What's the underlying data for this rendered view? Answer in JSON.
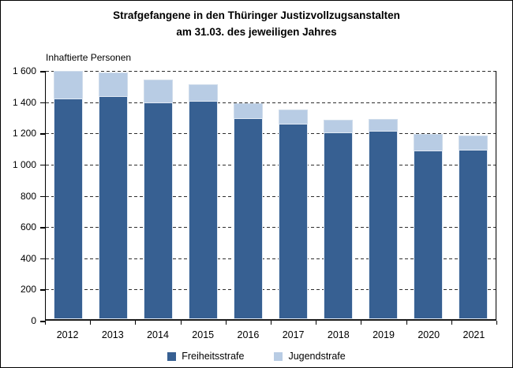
{
  "figure": {
    "title_line1": "Strafgefangene in den Thüringer Justizvollzugsanstalten",
    "title_line2": "am 31.03. des jeweiligen Jahres",
    "axis_unit_label": "Inhaftierte Personen"
  },
  "legend": {
    "items": [
      {
        "label": "Freiheitsstrafe",
        "color": "#376092"
      },
      {
        "label": "Jugendstrafe",
        "color": "#b8cce4"
      }
    ]
  },
  "colors": {
    "bar_dark": "#376092",
    "bar_light": "#b8cce4",
    "gridline": "#2e2e2e",
    "axis": "#000000"
  },
  "chart_data": {
    "type": "bar",
    "stacked": true,
    "title": "Strafgefangene in den Thüringer Justizvollzugsanstalten am 31.03. des jeweiligen Jahres",
    "ylabel": "Inhaftierte Personen",
    "categories": [
      "2012",
      "2013",
      "2014",
      "2015",
      "2016",
      "2017",
      "2018",
      "2019",
      "2020",
      "2021"
    ],
    "series": [
      {
        "name": "Freiheitsstrafe",
        "color": "#376092",
        "values": [
          1415,
          1430,
          1388,
          1396,
          1287,
          1252,
          1195,
          1205,
          1082,
          1087
        ]
      },
      {
        "name": "Jugendstrafe",
        "color": "#b8cce4",
        "values": [
          176,
          150,
          146,
          110,
          97,
          90,
          80,
          78,
          105,
          90
        ]
      }
    ],
    "totals": [
      1591,
      1580,
      1534,
      1506,
      1384,
      1342,
      1275,
      1283,
      1187,
      1177
    ],
    "ylim": [
      0,
      1600
    ],
    "ytick_step": 200,
    "yticks": [
      0,
      200,
      400,
      600,
      800,
      1000,
      1200,
      1400,
      1600
    ],
    "ytick_labels": [
      "0",
      "200",
      "400",
      "600",
      "800",
      "1 000",
      "1 200",
      "1 400",
      "1 600"
    ],
    "grid": "horizontal dashed",
    "legend_position": "bottom"
  }
}
